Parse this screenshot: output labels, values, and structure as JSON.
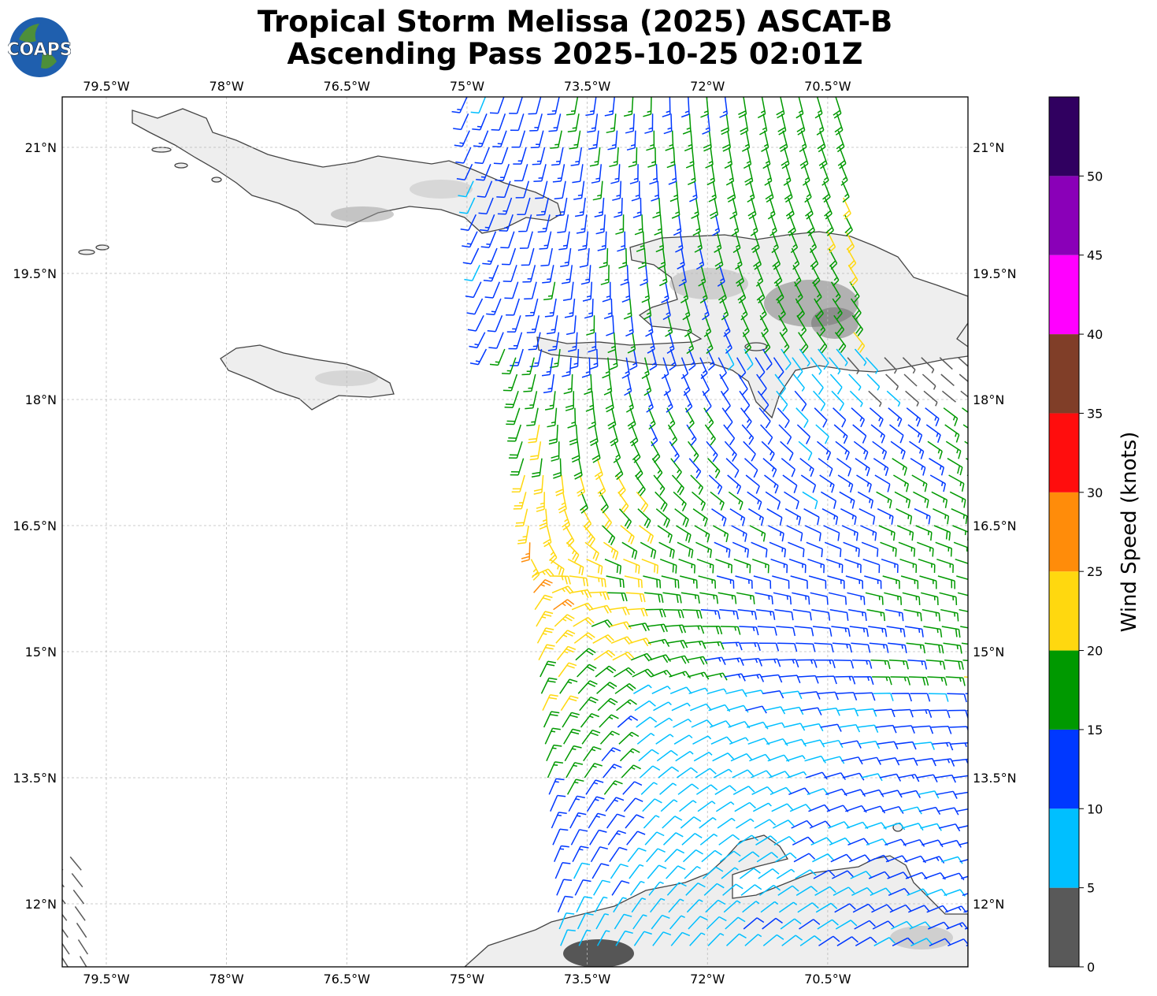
{
  "title": {
    "line1": "Tropical Storm Melissa (2025) ASCAT-B",
    "line2": "Ascending Pass 2025-10-25 02:01Z"
  },
  "logo": {
    "text": "COAPS"
  },
  "map": {
    "lon_range": [
      -80.05,
      -68.75
    ],
    "lat_range": [
      11.25,
      21.6
    ],
    "lon_ticks": [
      {
        "value": -79.5,
        "label": "79.5°W"
      },
      {
        "value": -78.0,
        "label": "78°W"
      },
      {
        "value": -76.5,
        "label": "76.5°W"
      },
      {
        "value": -75.0,
        "label": "75°W"
      },
      {
        "value": -73.5,
        "label": "73.5°W"
      },
      {
        "value": -72.0,
        "label": "72°W"
      },
      {
        "value": -70.5,
        "label": "70.5°W"
      }
    ],
    "lat_ticks": [
      {
        "value": 21.0,
        "label": "21°N"
      },
      {
        "value": 19.5,
        "label": "19.5°N"
      },
      {
        "value": 18.0,
        "label": "18°N"
      },
      {
        "value": 16.5,
        "label": "16.5°N"
      },
      {
        "value": 15.0,
        "label": "15°N"
      },
      {
        "value": 13.5,
        "label": "13.5°N"
      },
      {
        "value": 12.0,
        "label": "12°N"
      }
    ],
    "grid": true,
    "land_color": "#eeeeee",
    "coast_color": "#444444"
  },
  "colorbar": {
    "label": "Wind Speed (knots)",
    "ticks": [
      "0",
      "5",
      "10",
      "15",
      "20",
      "25",
      "30",
      "35",
      "40",
      "45",
      "50"
    ],
    "bins": [
      {
        "min": 0,
        "max": 5,
        "color": "#595959"
      },
      {
        "min": 5,
        "max": 10,
        "color": "#00bfff"
      },
      {
        "min": 10,
        "max": 15,
        "color": "#0038ff"
      },
      {
        "min": 15,
        "max": 20,
        "color": "#009900"
      },
      {
        "min": 20,
        "max": 25,
        "color": "#ffd80f"
      },
      {
        "min": 25,
        "max": 30,
        "color": "#ff8c0a"
      },
      {
        "min": 30,
        "max": 35,
        "color": "#ff0d0d"
      },
      {
        "min": 35,
        "max": 40,
        "color": "#803e28"
      },
      {
        "min": 40,
        "max": 45,
        "color": "#ff00ff"
      },
      {
        "min": 45,
        "max": 50,
        "color": "#8a00b8"
      },
      {
        "min": 50,
        "max": 55,
        "color": "#300060"
      }
    ]
  },
  "wind_field": {
    "swaths": [
      {
        "lon_west": -75.0,
        "lon_east": -70.2,
        "lat_south": 18.6,
        "lat_north": 21.6
      },
      {
        "lon_west": -74.4,
        "lon_east": -68.75,
        "lat_south": 11.5,
        "lat_north": 18.6
      },
      {
        "lon_west": -80.05,
        "lon_east": -79.6,
        "lat_south": 11.2,
        "lat_north": 12.5
      }
    ]
  }
}
